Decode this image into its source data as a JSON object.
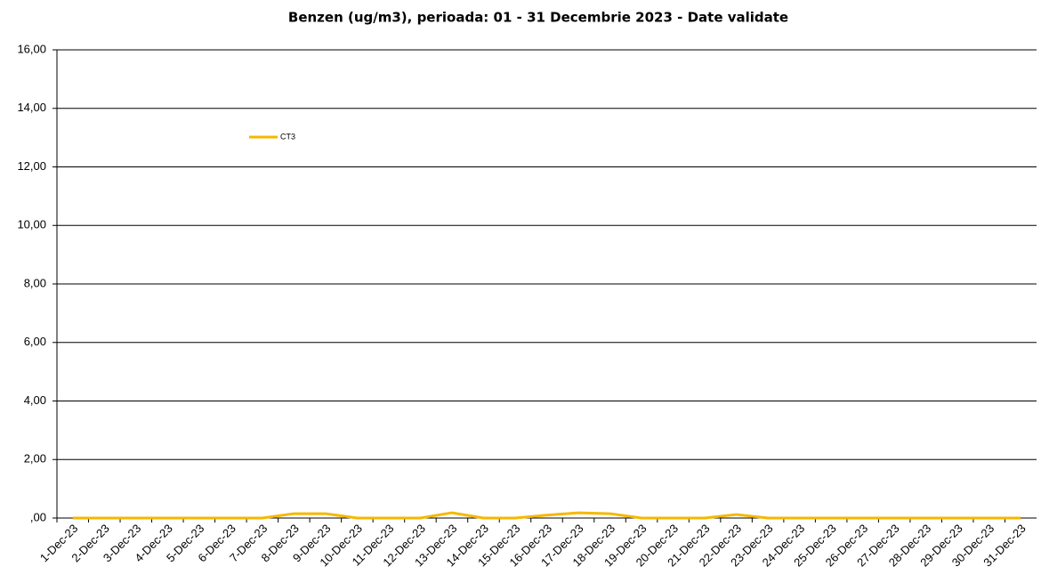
{
  "chart_data": {
    "type": "line",
    "title": "Benzen (ug/m3), perioada: 01 - 31 Decembrie 2023 - Date validate",
    "categories": [
      "1-Dec-23",
      "2-Dec-23",
      "3-Dec-23",
      "4-Dec-23",
      "5-Dec-23",
      "6-Dec-23",
      "7-Dec-23",
      "8-Dec-23",
      "9-Dec-23",
      "10-Dec-23",
      "11-Dec-23",
      "12-Dec-23",
      "13-Dec-23",
      "14-Dec-23",
      "15-Dec-23",
      "16-Dec-23",
      "17-Dec-23",
      "18-Dec-23",
      "19-Dec-23",
      "20-Dec-23",
      "21-Dec-23",
      "22-Dec-23",
      "23-Dec-23",
      "24-Dec-23",
      "25-Dec-23",
      "26-Dec-23",
      "27-Dec-23",
      "28-Dec-23",
      "29-Dec-23",
      "30-Dec-23",
      "31-Dec-23"
    ],
    "series": [
      {
        "name": "CT3",
        "color": "#f5b800",
        "values": [
          0,
          0,
          0,
          0,
          0,
          0,
          0,
          0.15,
          0.15,
          0,
          0,
          0,
          0.18,
          0,
          0,
          0.1,
          0.18,
          0.15,
          0,
          0,
          0,
          0.12,
          0,
          0,
          0,
          0,
          0,
          0,
          0,
          0,
          0
        ]
      }
    ],
    "ylim": [
      0,
      16
    ],
    "yticks": [
      {
        "value": 0,
        "label": ",00"
      },
      {
        "value": 2,
        "label": "2,00"
      },
      {
        "value": 4,
        "label": "4,00"
      },
      {
        "value": 6,
        "label": "6,00"
      },
      {
        "value": 8,
        "label": "8,00"
      },
      {
        "value": 10,
        "label": "10,00"
      },
      {
        "value": 12,
        "label": "12,00"
      },
      {
        "value": 14,
        "label": "14,00"
      },
      {
        "value": 16,
        "label": "16,00"
      }
    ],
    "grid": true,
    "legend": "upper-left"
  }
}
